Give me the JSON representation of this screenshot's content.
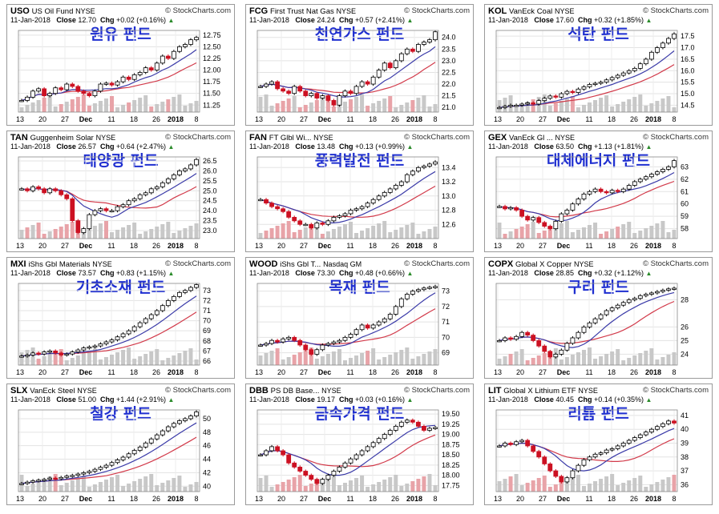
{
  "dates_axis": [
    "13",
    "20",
    "27",
    "Dec",
    "11",
    "18",
    "26",
    "2018",
    "8"
  ],
  "panels": [
    {
      "symbol": "USO",
      "name": "US Oil Fund",
      "exchange": "NYSE",
      "date": "11-Jan-2018",
      "close": "12.70",
      "chg": "+0.02 (+0.16%)",
      "title": "원유 펀드",
      "yticks": [
        "12.75",
        "12.50",
        "12.25",
        "12.00",
        "11.75",
        "11.50",
        "11.25"
      ],
      "ylim": [
        11.1,
        12.85
      ],
      "chart_data": {
        "type": "line",
        "series": [
          {
            "values": [
              11.35,
              11.42,
              11.55,
              11.6,
              11.45,
              11.5,
              11.62,
              11.58,
              11.7,
              11.65,
              11.55,
              11.5,
              11.45,
              11.55,
              11.7,
              11.72,
              11.68,
              11.75,
              11.85,
              11.8,
              11.9,
              11.95,
              12.05,
              12.0,
              12.15,
              12.3,
              12.25,
              12.4,
              12.5,
              12.55,
              12.65,
              12.7
            ]
          }
        ]
      }
    },
    {
      "symbol": "FCG",
      "name": "First Trust Nat Gas",
      "exchange": "NYSE",
      "date": "11-Jan-2018",
      "close": "24.24",
      "chg": "+0.57 (+2.41%)",
      "title": "천연가스 펀드",
      "yticks": [
        "24.0",
        "23.5",
        "23.0",
        "22.5",
        "22.0",
        "21.5",
        "21.0"
      ],
      "ylim": [
        20.8,
        24.3
      ],
      "chart_data": {
        "type": "line",
        "series": [
          {
            "values": [
              21.9,
              22.0,
              22.1,
              21.8,
              21.7,
              21.6,
              21.9,
              21.7,
              21.5,
              21.6,
              21.4,
              21.5,
              21.3,
              21.1,
              21.5,
              21.7,
              21.6,
              21.9,
              22.1,
              22.0,
              22.3,
              22.6,
              22.9,
              22.7,
              23.0,
              23.3,
              23.5,
              23.4,
              23.7,
              23.8,
              23.9,
              24.24
            ]
          }
        ]
      }
    },
    {
      "symbol": "KOL",
      "name": "VanEck Coal",
      "exchange": "NYSE",
      "date": "11-Jan-2018",
      "close": "17.60",
      "chg": "+0.32 (+1.85%)",
      "title": "석탄 펀드",
      "yticks": [
        "17.5",
        "17.0",
        "16.5",
        "16.0",
        "15.5",
        "15.0",
        "14.5"
      ],
      "ylim": [
        14.2,
        17.75
      ],
      "chart_data": {
        "type": "line",
        "series": [
          {
            "values": [
              14.4,
              14.45,
              14.5,
              14.5,
              14.55,
              14.6,
              14.55,
              14.7,
              14.8,
              14.9,
              14.85,
              15.0,
              15.1,
              15.05,
              15.2,
              15.3,
              15.4,
              15.45,
              15.5,
              15.6,
              15.7,
              15.8,
              15.9,
              16.0,
              16.1,
              16.3,
              16.5,
              16.8,
              17.0,
              17.2,
              17.4,
              17.6
            ]
          }
        ]
      }
    },
    {
      "symbol": "TAN",
      "name": "Guggenheim Solar",
      "exchange": "NYSE",
      "date": "11-Jan-2018",
      "close": "26.57",
      "chg": "+0.64 (+2.47%)",
      "title": "태양광 펀드",
      "yticks": [
        "26.5",
        "26.0",
        "25.5",
        "25.0",
        "24.5",
        "24.0",
        "23.5",
        "23.0"
      ],
      "ylim": [
        22.6,
        26.7
      ],
      "chart_data": {
        "type": "line",
        "series": [
          {
            "values": [
              25.1,
              25.0,
              25.2,
              25.1,
              24.9,
              25.1,
              25.0,
              24.8,
              24.6,
              23.5,
              22.9,
              23.1,
              23.8,
              24.0,
              24.1,
              24.0,
              24.0,
              24.2,
              24.3,
              24.5,
              24.6,
              24.8,
              24.9,
              25.1,
              25.2,
              25.4,
              25.6,
              25.8,
              26.0,
              26.1,
              26.3,
              26.57
            ]
          }
        ]
      }
    },
    {
      "symbol": "FAN",
      "name": "FT Glbl Wi...",
      "exchange": "NYSE",
      "date": "11-Jan-2018",
      "close": "13.48",
      "chg": "+0.13 (+0.99%)",
      "title": "풍력발전 펀드",
      "yticks": [
        "13.4",
        "13.2",
        "13.0",
        "12.8",
        "12.6"
      ],
      "ylim": [
        12.4,
        13.55
      ],
      "chart_data": {
        "type": "line",
        "series": [
          {
            "values": [
              12.95,
              12.9,
              12.85,
              12.82,
              12.78,
              12.7,
              12.65,
              12.6,
              12.6,
              12.55,
              12.62,
              12.6,
              12.65,
              12.7,
              12.72,
              12.75,
              12.8,
              12.82,
              12.85,
              12.9,
              12.95,
              13.0,
              13.05,
              13.1,
              13.15,
              13.2,
              13.3,
              13.35,
              13.4,
              13.42,
              13.45,
              13.48
            ]
          }
        ]
      }
    },
    {
      "symbol": "GEX",
      "name": "VanEck Gl ...",
      "exchange": "NYSE",
      "date": "11-Jan-2018",
      "close": "63.50",
      "chg": "+1.13 (+1.81%)",
      "title": "대체에너지 펀드",
      "yticks": [
        "63",
        "62",
        "61",
        "60",
        "59",
        "58"
      ],
      "ylim": [
        57.2,
        63.8
      ],
      "chart_data": {
        "type": "line",
        "series": [
          {
            "values": [
              59.8,
              59.6,
              59.7,
              59.5,
              59.0,
              58.7,
              58.9,
              58.5,
              58.2,
              58.0,
              58.6,
              59.2,
              59.5,
              60.0,
              60.4,
              60.8,
              61.0,
              61.2,
              61.0,
              60.9,
              61.1,
              61.0,
              61.2,
              61.5,
              61.8,
              62.0,
              62.2,
              62.4,
              62.6,
              62.8,
              63.0,
              63.5
            ]
          }
        ]
      }
    },
    {
      "symbol": "MXI",
      "name": "iShs Gbl Materials",
      "exchange": "NYSE",
      "date": "11-Jan-2018",
      "close": "73.57",
      "chg": "+0.83 (+1.15%)",
      "title": "기초소재 펀드",
      "yticks": [
        "73",
        "72",
        "71",
        "70",
        "69",
        "68",
        "67",
        "66"
      ],
      "ylim": [
        65.6,
        73.7
      ],
      "chart_data": {
        "type": "line",
        "series": [
          {
            "values": [
              66.5,
              66.6,
              66.8,
              66.7,
              66.9,
              67.0,
              66.8,
              66.6,
              66.7,
              66.9,
              67.1,
              67.3,
              67.4,
              67.5,
              67.7,
              67.9,
              68.1,
              68.4,
              68.7,
              69.0,
              69.4,
              69.8,
              70.2,
              70.6,
              71.0,
              71.5,
              72.0,
              72.4,
              72.8,
              73.0,
              73.3,
              73.57
            ]
          }
        ]
      }
    },
    {
      "symbol": "WOOD",
      "name": "iShs Gbl T...",
      "exchange": "Nasdaq GM",
      "date": "11-Jan-2018",
      "close": "73.30",
      "chg": "+0.48 (+0.66%)",
      "title": "목재 펀드",
      "yticks": [
        "73",
        "72",
        "71",
        "70",
        "69"
      ],
      "ylim": [
        68.2,
        73.5
      ],
      "chart_data": {
        "type": "line",
        "series": [
          {
            "values": [
              69.5,
              69.6,
              69.8,
              69.7,
              69.9,
              70.0,
              69.8,
              69.5,
              69.2,
              68.9,
              69.2,
              69.5,
              69.6,
              69.7,
              69.8,
              70.0,
              70.2,
              70.5,
              70.8,
              70.6,
              70.8,
              71.0,
              71.2,
              71.5,
              72.0,
              72.5,
              72.8,
              73.0,
              73.1,
              73.2,
              73.25,
              73.3
            ]
          }
        ]
      }
    },
    {
      "symbol": "COPX",
      "name": "Global X Copper",
      "exchange": "NYSE",
      "date": "11-Jan-2018",
      "close": "28.85",
      "chg": "+0.32 (+1.12%)",
      "title": "구리 펀드",
      "yticks": [
        "28",
        "26",
        "25",
        "24"
      ],
      "ylim": [
        23.2,
        29.2
      ],
      "chart_data": {
        "type": "line",
        "series": [
          {
            "values": [
              25.0,
              25.2,
              25.1,
              25.3,
              25.6,
              25.4,
              25.0,
              24.6,
              24.2,
              23.8,
              24.0,
              24.3,
              24.8,
              25.2,
              25.6,
              26.0,
              26.3,
              26.6,
              26.9,
              27.2,
              27.4,
              27.6,
              27.8,
              28.0,
              28.1,
              28.3,
              28.4,
              28.5,
              28.6,
              28.7,
              28.8,
              28.85
            ]
          }
        ]
      }
    },
    {
      "symbol": "SLX",
      "name": "VanEck Steel",
      "exchange": "NYSE",
      "date": "11-Jan-2018",
      "close": "51.00",
      "chg": "+1.44 (+2.91%)",
      "title": "철강 펀드",
      "yticks": [
        "50",
        "48",
        "46",
        "44",
        "42",
        "40"
      ],
      "ylim": [
        39.2,
        51.3
      ],
      "chart_data": {
        "type": "line",
        "series": [
          {
            "values": [
              40.4,
              40.6,
              40.8,
              40.9,
              41.0,
              41.2,
              41.1,
              41.3,
              41.5,
              41.6,
              41.8,
              42.0,
              42.2,
              42.5,
              42.8,
              43.1,
              43.5,
              43.9,
              44.3,
              44.8,
              45.3,
              45.8,
              46.4,
              47.0,
              47.6,
              48.2,
              48.8,
              49.3,
              49.7,
              50.0,
              50.4,
              51.0
            ]
          }
        ]
      }
    },
    {
      "symbol": "DBB",
      "name": "PS DB Base...",
      "exchange": "NYSE",
      "date": "11-Jan-2018",
      "close": "19.17",
      "chg": "+0.03 (+0.16%)",
      "title": "금속가격 펀드",
      "yticks": [
        "19.50",
        "19.25",
        "19.00",
        "18.75",
        "18.50",
        "18.25",
        "18.00",
        "17.75"
      ],
      "ylim": [
        17.6,
        19.6
      ],
      "chart_data": {
        "type": "line",
        "series": [
          {
            "values": [
              18.5,
              18.6,
              18.7,
              18.6,
              18.5,
              18.3,
              18.2,
              18.1,
              18.0,
              17.9,
              17.8,
              17.9,
              18.0,
              18.1,
              18.2,
              18.3,
              18.4,
              18.5,
              18.6,
              18.7,
              18.8,
              18.9,
              19.0,
              19.1,
              19.2,
              19.3,
              19.35,
              19.3,
              19.2,
              19.1,
              19.15,
              19.17
            ]
          }
        ]
      }
    },
    {
      "symbol": "LIT",
      "name": "Global X Lithium ETF",
      "exchange": "NYSE",
      "date": "11-Jan-2018",
      "close": "40.45",
      "chg": "+0.14 (+0.35%)",
      "title": "리튬 펀드",
      "yticks": [
        "41",
        "40",
        "39",
        "38",
        "37",
        "36"
      ],
      "ylim": [
        35.5,
        41.4
      ],
      "chart_data": {
        "type": "line",
        "series": [
          {
            "values": [
              38.8,
              39.0,
              38.9,
              39.1,
              39.2,
              38.8,
              38.4,
              38.0,
              37.5,
              37.0,
              36.6,
              36.2,
              36.5,
              37.0,
              37.4,
              37.8,
              38.0,
              38.2,
              38.3,
              38.5,
              38.6,
              38.8,
              39.0,
              39.2,
              39.4,
              39.6,
              39.8,
              40.0,
              40.2,
              40.4,
              40.6,
              40.45
            ]
          }
        ]
      }
    }
  ]
}
